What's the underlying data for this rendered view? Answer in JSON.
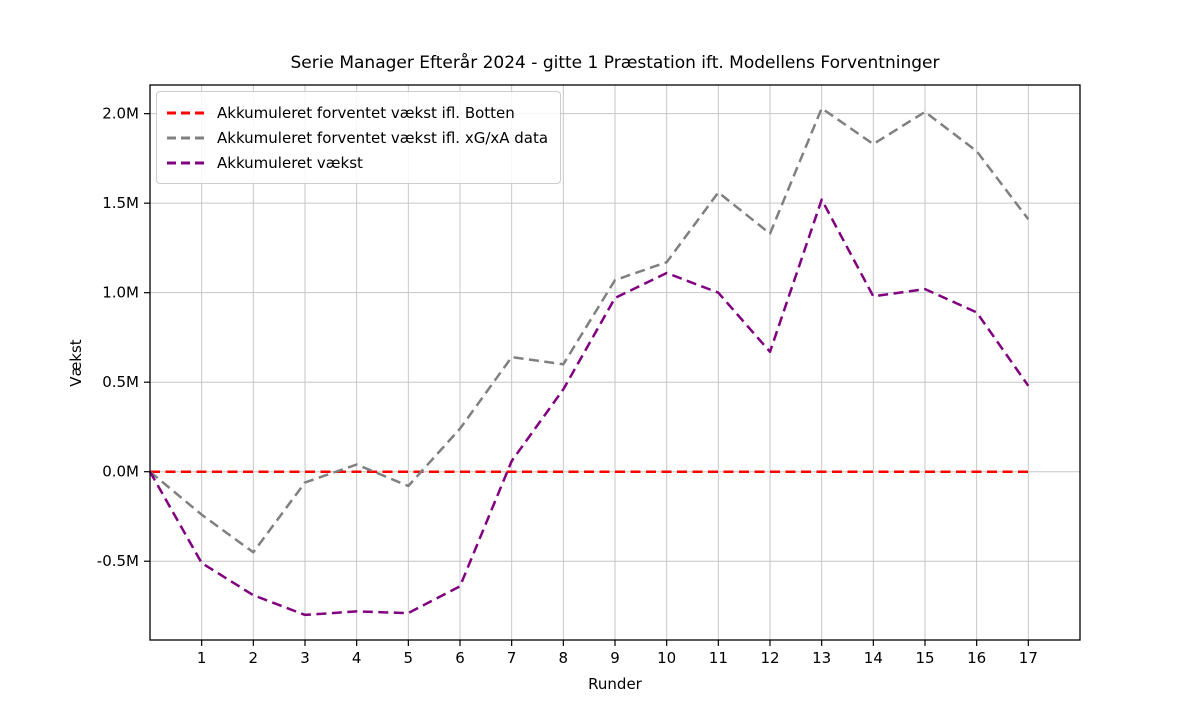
{
  "chart_data": {
    "type": "line",
    "title": "Serie Manager Efterår 2024 - gitte 1 Præstation ift. Modellens Forventninger",
    "xlabel": "Runder",
    "ylabel": "Vækst",
    "xlim": [
      0,
      18
    ],
    "ylim": [
      -0.94,
      2.16
    ],
    "x_ticks": [
      1,
      2,
      3,
      4,
      5,
      6,
      7,
      8,
      9,
      10,
      11,
      12,
      13,
      14,
      15,
      16,
      17
    ],
    "y_tick_values": [
      -0.5,
      0.0,
      0.5,
      1.0,
      1.5,
      2.0
    ],
    "y_tick_labels": [
      "-0.5M",
      "0.0M",
      "0.5M",
      "1.0M",
      "1.5M",
      "2.0M"
    ],
    "grid": true,
    "grid_color": "#c6c6c6",
    "legend_position": "upper-left",
    "unit": "M",
    "x": [
      0,
      1,
      2,
      3,
      4,
      5,
      6,
      7,
      8,
      9,
      10,
      11,
      12,
      13,
      14,
      15,
      16,
      17
    ],
    "series": [
      {
        "name": "Akkumuleret forventet vækst ifl. Botten",
        "color": "#ff0000",
        "style": "dashed",
        "values": [
          0,
          0,
          0,
          0,
          0,
          0,
          0,
          0,
          0,
          0,
          0,
          0,
          0,
          0,
          0,
          0,
          0,
          0
        ]
      },
      {
        "name": "Akkumuleret forventet vækst ifl. xG/xA data",
        "color": "#808080",
        "style": "dashed",
        "values": [
          0,
          -0.24,
          -0.45,
          -0.06,
          0.04,
          -0.08,
          0.24,
          0.64,
          0.6,
          1.07,
          1.17,
          1.56,
          1.33,
          2.03,
          1.83,
          2.01,
          1.79,
          1.41
        ]
      },
      {
        "name": "Akkumuleret vækst",
        "color": "#800080",
        "style": "dashed",
        "values": [
          0,
          -0.51,
          -0.69,
          -0.8,
          -0.78,
          -0.79,
          -0.64,
          0.06,
          0.46,
          0.97,
          1.11,
          1.0,
          0.67,
          1.52,
          0.98,
          1.02,
          0.89,
          0.48
        ]
      }
    ]
  }
}
